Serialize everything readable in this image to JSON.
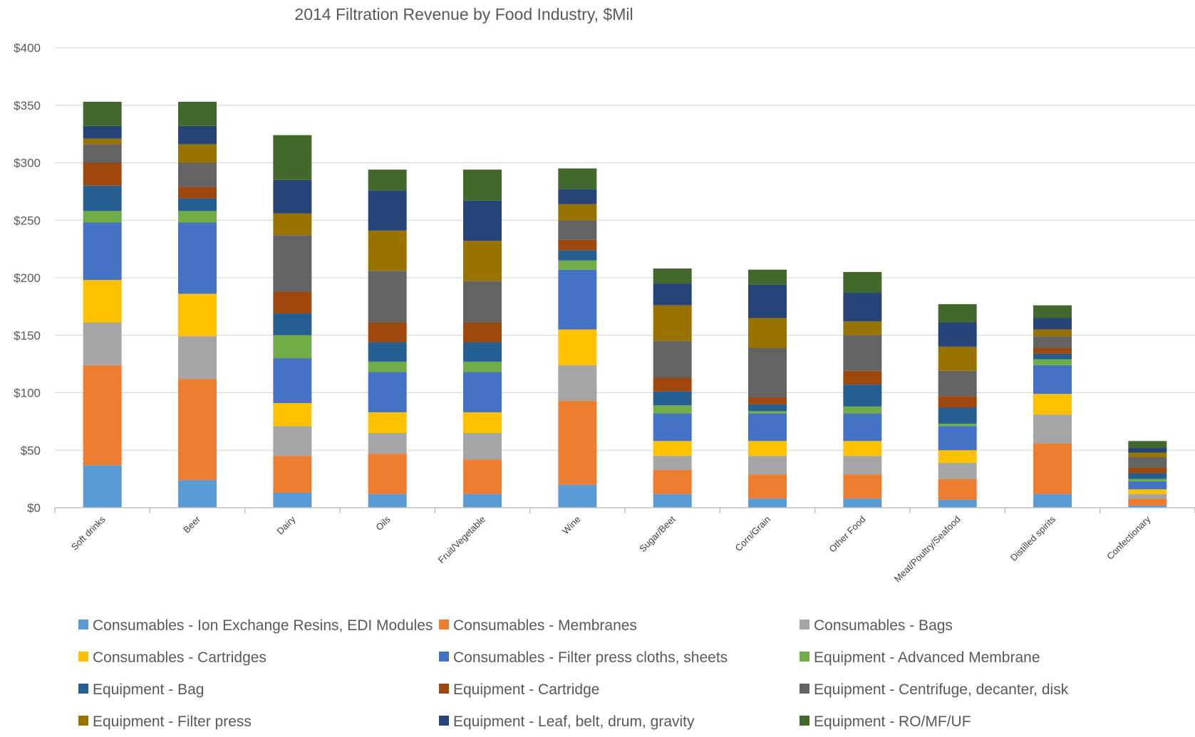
{
  "chart_data": {
    "type": "bar",
    "stacked": true,
    "title": "2014 Filtration Revenue by Food Industry, $Mil",
    "xlabel": "",
    "ylabel": "",
    "ylim": [
      0,
      400
    ],
    "yticks": [
      0,
      50,
      100,
      150,
      200,
      250,
      300,
      350,
      400
    ],
    "ytick_labels": [
      "$0",
      "$50",
      "$100",
      "$150",
      "$200",
      "$250",
      "$300",
      "$350",
      "$400"
    ],
    "grid": true,
    "legend_position": "bottom",
    "categories": [
      "Soft drinks",
      "Beer",
      "Dairy",
      "Oils",
      "Fruit/Vegetable",
      "Wine",
      "Sugar/Beet",
      "Corn/Grain",
      "Other Food",
      "Meat/Poultry/Seafood",
      "Distilled spirits",
      "Confectionary"
    ],
    "series": [
      {
        "name": "Consumables - Ion Exchange Resins, EDI Modules",
        "color": "#5B9BD5",
        "values": [
          37,
          24,
          13,
          12,
          12,
          20,
          12,
          8,
          8,
          7,
          12,
          2
        ]
      },
      {
        "name": "Consumables - Membranes",
        "color": "#ED7D31",
        "values": [
          87,
          88,
          32,
          35,
          30,
          73,
          21,
          21,
          21,
          18,
          44,
          6
        ]
      },
      {
        "name": "Consumables - Bags",
        "color": "#A5A5A5",
        "values": [
          37,
          37,
          26,
          18,
          23,
          31,
          12,
          16,
          16,
          14,
          25,
          4
        ]
      },
      {
        "name": "Consumables - Cartridges",
        "color": "#FFC000",
        "values": [
          37,
          37,
          20,
          18,
          18,
          31,
          13,
          13,
          13,
          11,
          18,
          4
        ]
      },
      {
        "name": "Consumables - Filter press cloths, sheets",
        "color": "#4472C4",
        "values": [
          50,
          62,
          39,
          35,
          35,
          52,
          24,
          24,
          24,
          21,
          25,
          7
        ]
      },
      {
        "name": "Equipment - Advanced Membrane",
        "color": "#70AD47",
        "values": [
          10,
          10,
          20,
          9,
          9,
          8,
          7,
          2,
          6,
          2,
          5,
          2
        ]
      },
      {
        "name": "Equipment - Bag",
        "color": "#255E91",
        "values": [
          22,
          11,
          19,
          17,
          17,
          9,
          12,
          6,
          19,
          14,
          5,
          5
        ]
      },
      {
        "name": "Equipment - Cartridge",
        "color": "#9E480E",
        "values": [
          20,
          10,
          19,
          17,
          17,
          9,
          12,
          6,
          12,
          10,
          5,
          5
        ]
      },
      {
        "name": "Equipment - Centrifuge, decanter, disk",
        "color": "#636363",
        "values": [
          16,
          21,
          49,
          45,
          36,
          17,
          32,
          43,
          31,
          22,
          10,
          9
        ]
      },
      {
        "name": "Equipment - Filter press",
        "color": "#997300",
        "values": [
          5,
          16,
          19,
          35,
          35,
          14,
          31,
          26,
          12,
          21,
          6,
          4
        ]
      },
      {
        "name": "Equipment - Leaf, belt, drum, gravity",
        "color": "#264478",
        "values": [
          11,
          16,
          29,
          35,
          35,
          13,
          19,
          29,
          25,
          21,
          10,
          4
        ]
      },
      {
        "name": "Equipment - RO/MF/UF",
        "color": "#43682B",
        "values": [
          21,
          21,
          39,
          18,
          27,
          18,
          13,
          13,
          18,
          16,
          11,
          6
        ]
      }
    ]
  }
}
